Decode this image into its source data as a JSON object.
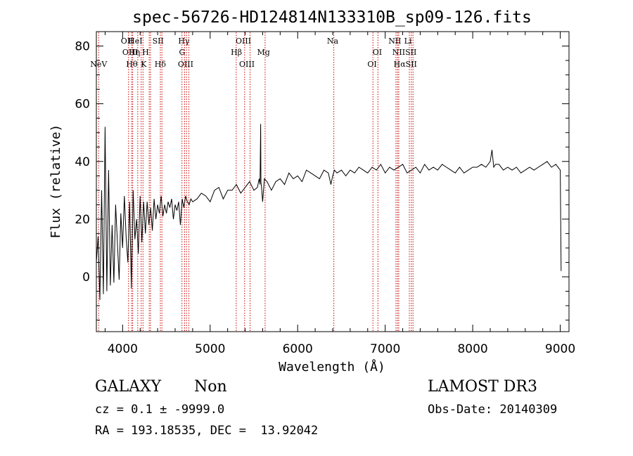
{
  "chart_data": {
    "type": "line",
    "title": "spec-56726-HD124814N133310B_sp09-126.fits",
    "xlabel": "Wavelength (Å)",
    "ylabel": "Flux (relative)",
    "xlim": [
      3700,
      9100
    ],
    "ylim": [
      -19,
      85
    ],
    "x_ticks": [
      4000,
      5000,
      6000,
      7000,
      8000,
      9000
    ],
    "y_ticks": [
      0,
      20,
      40,
      60,
      80
    ],
    "x": [
      3700,
      3720,
      3740,
      3760,
      3780,
      3800,
      3820,
      3840,
      3860,
      3880,
      3900,
      3920,
      3940,
      3960,
      3980,
      4000,
      4020,
      4040,
      4060,
      4080,
      4100,
      4120,
      4140,
      4160,
      4180,
      4200,
      4220,
      4240,
      4260,
      4280,
      4300,
      4320,
      4340,
      4360,
      4380,
      4400,
      4420,
      4440,
      4460,
      4480,
      4500,
      4520,
      4540,
      4560,
      4580,
      4600,
      4620,
      4640,
      4660,
      4680,
      4700,
      4720,
      4740,
      4760,
      4780,
      4800,
      4850,
      4900,
      4950,
      5000,
      5050,
      5100,
      5150,
      5200,
      5250,
      5300,
      5350,
      5400,
      5450,
      5500,
      5540,
      5560,
      5570,
      5577,
      5580,
      5590,
      5600,
      5620,
      5650,
      5700,
      5750,
      5800,
      5850,
      5900,
      5950,
      6000,
      6050,
      6100,
      6150,
      6200,
      6250,
      6300,
      6350,
      6380,
      6400,
      6420,
      6450,
      6500,
      6550,
      6600,
      6650,
      6700,
      6750,
      6800,
      6850,
      6900,
      6950,
      7000,
      7050,
      7100,
      7150,
      7200,
      7250,
      7300,
      7350,
      7400,
      7450,
      7500,
      7550,
      7600,
      7650,
      7700,
      7750,
      7800,
      7850,
      7900,
      7950,
      8000,
      8050,
      8100,
      8150,
      8200,
      8220,
      8240,
      8260,
      8300,
      8350,
      8400,
      8450,
      8500,
      8550,
      8600,
      8650,
      8700,
      8750,
      8800,
      8850,
      8900,
      8950,
      9000,
      9010
    ],
    "values": [
      5,
      14,
      -8,
      30,
      -6,
      52,
      -5,
      37,
      -3,
      18,
      -2,
      25,
      12,
      -1,
      22,
      10,
      28,
      14,
      5,
      26,
      -4,
      30,
      13,
      20,
      8,
      28,
      12,
      26,
      15,
      26,
      18,
      24,
      16,
      27,
      20,
      25,
      22,
      28,
      21,
      25,
      22,
      26,
      24,
      27,
      20,
      25,
      23,
      26,
      18,
      27,
      24,
      28,
      26,
      25,
      27,
      26,
      27,
      29,
      28,
      26,
      30,
      31,
      27,
      30,
      30,
      32,
      29,
      31,
      33,
      30,
      31,
      34,
      32,
      53,
      33,
      30,
      26,
      34,
      33,
      30,
      33,
      34,
      32,
      36,
      34,
      35,
      33,
      37,
      36,
      35,
      34,
      37,
      36,
      32,
      35,
      37,
      36,
      37,
      35,
      37,
      36,
      38,
      37,
      36,
      38,
      37,
      39,
      36,
      38,
      37,
      38,
      39,
      36,
      37,
      38,
      36,
      39,
      37,
      38,
      37,
      39,
      38,
      37,
      36,
      38,
      36,
      37,
      38,
      38,
      39,
      38,
      40,
      44,
      38,
      39,
      39,
      37,
      38,
      37,
      38,
      36,
      37,
      38,
      37,
      38,
      39,
      40,
      38,
      39,
      37,
      2
    ],
    "line_labels": [
      {
        "label": "NeV",
        "wl": 3726,
        "row": 3
      },
      {
        "label": "OII",
        "wl": 4050,
        "row": 1
      },
      {
        "label": "OIII",
        "wl": 4085,
        "row": 2
      },
      {
        "label": "HeI",
        "wl": 4145,
        "row": 1
      },
      {
        "label": "Hθ",
        "wl": 4105,
        "row": 3
      },
      {
        "label": "Hη",
        "wl": 4135,
        "row": 2
      },
      {
        "label": "H",
        "wl": 4262,
        "row": 2
      },
      {
        "label": "K",
        "wl": 4240,
        "row": 3
      },
      {
        "label": "SII",
        "wl": 4405,
        "row": 1
      },
      {
        "label": "Hδ",
        "wl": 4430,
        "row": 3
      },
      {
        "label": "Hγ",
        "wl": 4700,
        "row": 1
      },
      {
        "label": "G",
        "wl": 4680,
        "row": 2
      },
      {
        "label": "OIII",
        "wl": 4720,
        "row": 3
      },
      {
        "label": "OIII",
        "wl": 5380,
        "row": 1
      },
      {
        "label": "Hβ",
        "wl": 5300,
        "row": 2
      },
      {
        "label": "OIII",
        "wl": 5420,
        "row": 3
      },
      {
        "label": "Mg",
        "wl": 5610,
        "row": 2
      },
      {
        "label": "Na",
        "wl": 6400,
        "row": 1
      },
      {
        "label": "OI",
        "wl": 6910,
        "row": 2
      },
      {
        "label": "OI",
        "wl": 6850,
        "row": 3
      },
      {
        "label": "NII",
        "wl": 7110,
        "row": 1
      },
      {
        "label": "Li",
        "wl": 7260,
        "row": 1
      },
      {
        "label": "NIISII",
        "wl": 7220,
        "row": 2
      },
      {
        "label": "HαSII",
        "wl": 7230,
        "row": 3
      }
    ],
    "line_markers": [
      3726,
      4068,
      4102,
      4115,
      4173,
      4212,
      4233,
      4304,
      4319,
      4431,
      4449,
      4678,
      4708,
      4730,
      4757,
      5298,
      5394,
      5456,
      5628,
      6413,
      6860,
      6917,
      7123,
      7141,
      7155,
      7276,
      7299,
      7318
    ]
  },
  "footer": {
    "class": "GALAXY",
    "subclass": "Non",
    "survey": "LAMOST DR3",
    "cz": "cz = 0.1 ± -9999.0",
    "obs_date": "Obs-Date: 20140309",
    "coords": "RA = 193.18535, DEC =  13.92042"
  }
}
